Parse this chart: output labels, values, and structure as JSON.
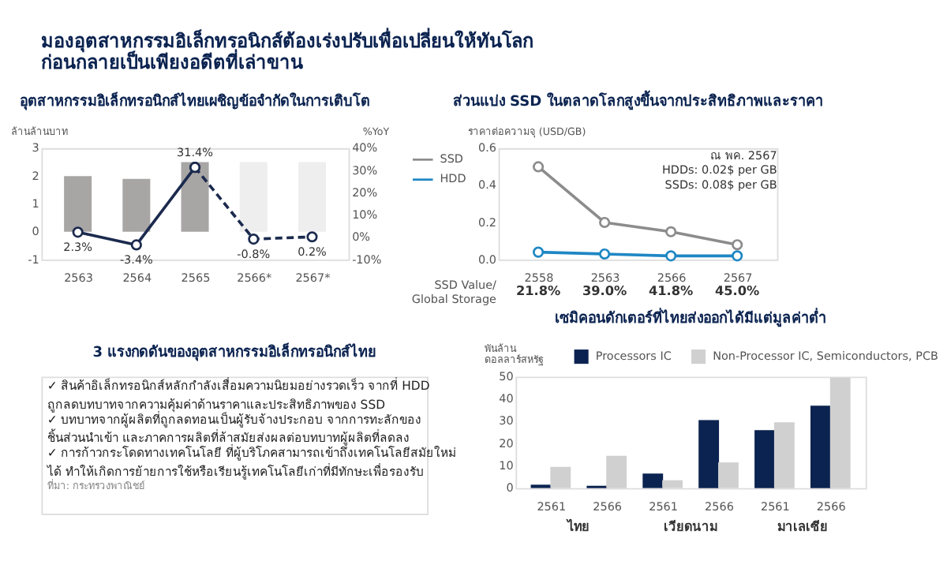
{
  "chart_data": [
    {
      "type": "other",
      "title": "มองอุตสาหกรรมอิเล็กทรอนิกส์ต้องเร่งปรับเพื่อเปลี่ยนให้ทันโลก\nก่อนกลายเป็นเพียงอดีตที่เล่าขาน"
    },
    {
      "type": "bar",
      "title": "อุตสาหกรรมอิเล็กทรอนิกส์ไทยเผชิญข้อจำกัดในการเติบโต",
      "ylabel": "ล้านล้านบาท",
      "y2label": "%YoY",
      "categories": [
        "2563",
        "2564",
        "2565",
        "2566*",
        "2567*"
      ],
      "ylim": [
        -1,
        3
      ],
      "yticks": [
        -1,
        0,
        1,
        2,
        3
      ],
      "y2lim": [
        -10,
        40
      ],
      "y2ticks": [
        {
          "value": -10,
          "label": "-10%"
        },
        {
          "value": 0,
          "label": "0%"
        },
        {
          "value": 10,
          "label": "10%"
        },
        {
          "value": 20,
          "label": "20%"
        },
        {
          "value": 30,
          "label": "30%"
        },
        {
          "value": 40,
          "label": "40%"
        }
      ],
      "marker": "circle",
      "series": [
        {
          "type": "bar",
          "colors": [
            "#a8a5a5",
            "#a8a5a5",
            "#a8a5a5",
            "#eeeeee",
            "#eeeeee"
          ],
          "values": [
            2.0,
            1.9,
            2.5,
            2.5,
            2.5
          ]
        },
        {
          "type": "line",
          "axis": "y2",
          "color": "#1b2a4e",
          "values": [
            2.3,
            -3.4,
            31.4,
            null,
            null
          ],
          "value_labels": [
            "2.3%",
            "-3.4%",
            "31.4%",
            null,
            null
          ]
        },
        {
          "type": "line",
          "axis": "y2",
          "color": "#1b2a4e",
          "line_style": "dashed",
          "values": [
            null,
            null,
            31.4,
            -0.8,
            0.2
          ],
          "value_labels": [
            null,
            null,
            null,
            "-0.8%",
            "0.2%"
          ]
        }
      ]
    },
    {
      "type": "line",
      "title": "ส่วนแบ่ง SSD ในตลาดโลกสูงขึ้นจากประสิทธิภาพและราคา",
      "ylabel": "ราคาต่อความจุ (USD/GB)",
      "xlabel": "SSD Value/\nGlobal Storage",
      "categories": [
        "2558",
        "2563",
        "2566",
        "2567"
      ],
      "ylim": [
        0,
        0.6
      ],
      "yticks": [
        {
          "value": 0,
          "label": "0.0"
        },
        0.2,
        0.4,
        0.6
      ],
      "marker": "circle",
      "legend": "left",
      "series": [
        {
          "name": "SSD",
          "color": "#8c8c8c",
          "values": [
            0.5,
            0.2,
            0.15,
            0.08
          ]
        },
        {
          "name": "HDD",
          "color": "#1f87c4",
          "values": [
            0.04,
            0.03,
            0.02,
            0.02
          ]
        }
      ],
      "annotations": [
        "ณ พค. 2567\nHDDs: 0.02$ per GB\nSSDs: 0.08$ per GB",
        "21.8%",
        "39.0%",
        "41.8%",
        "45.0%"
      ]
    },
    {
      "type": "other",
      "title": "3 แรงกดดันของอุตสาหกรรมอิเล็กทรอนิกส์ไทย",
      "annotations": [
        "✓ สินค้าอิเล็กทรอนิกส์หลักกำลังเสื่อมความนิยมอย่างรวดเร็ว จากที่ HDD\n   ถูกลดบทบาทจากความคุ้มค่าด้านราคาและประสิทธิภาพของ SSD",
        "✓ บทบาทจากผู้ผลิตที่ถูกลดทอนเป็นผู้รับจ้างประกอบ จากการทะลักของ\n   ชิ้นส่วนนำเข้า และภาคการผลิตที่ล้าสมัยส่งผลต่อบทบาทผู้ผลิตที่ลดลง",
        "✓ การก้าวกระโดดทางเทคโนโลยี ที่ผู้บริโภคสามารถเข้าถึงเทคโนโลยีสมัยใหม่\n   ได้ ทำให้เกิดการย้ายการใช้หรือเรียนรู้เทคโนโลยีเก่าที่มีทักษะเพื่อรองรับ",
        "ที่มา: กระทรวงพาณิชย์"
      ]
    },
    {
      "type": "bar",
      "title": "เซมิคอนดักเตอร์ที่ไทยส่งออกได้มีแต่มูลค่าต่ำ",
      "ylabel": "พันล้าน\nดอลลาร์สหรัฐ",
      "categories": [
        "2561",
        "2566",
        "2561",
        "2566",
        "2561",
        "2566"
      ],
      "ylim": [
        0,
        50
      ],
      "yticks": [
        0,
        10,
        20,
        30,
        40,
        50
      ],
      "legend": "top",
      "annotations": [
        "ไทย",
        "เวียดนาม",
        "มาเลเซีย"
      ],
      "series": [
        {
          "name": "Processors  IC",
          "color": "#0b2350",
          "values": [
            1.5,
            1,
            6.5,
            30.5,
            26,
            37
          ]
        },
        {
          "name": "Non-Processor IC, Semiconductors, PCB",
          "color": "#d0d0d0",
          "values": [
            9.5,
            14.5,
            3.5,
            11.5,
            29.5,
            49.5
          ]
        }
      ]
    }
  ]
}
